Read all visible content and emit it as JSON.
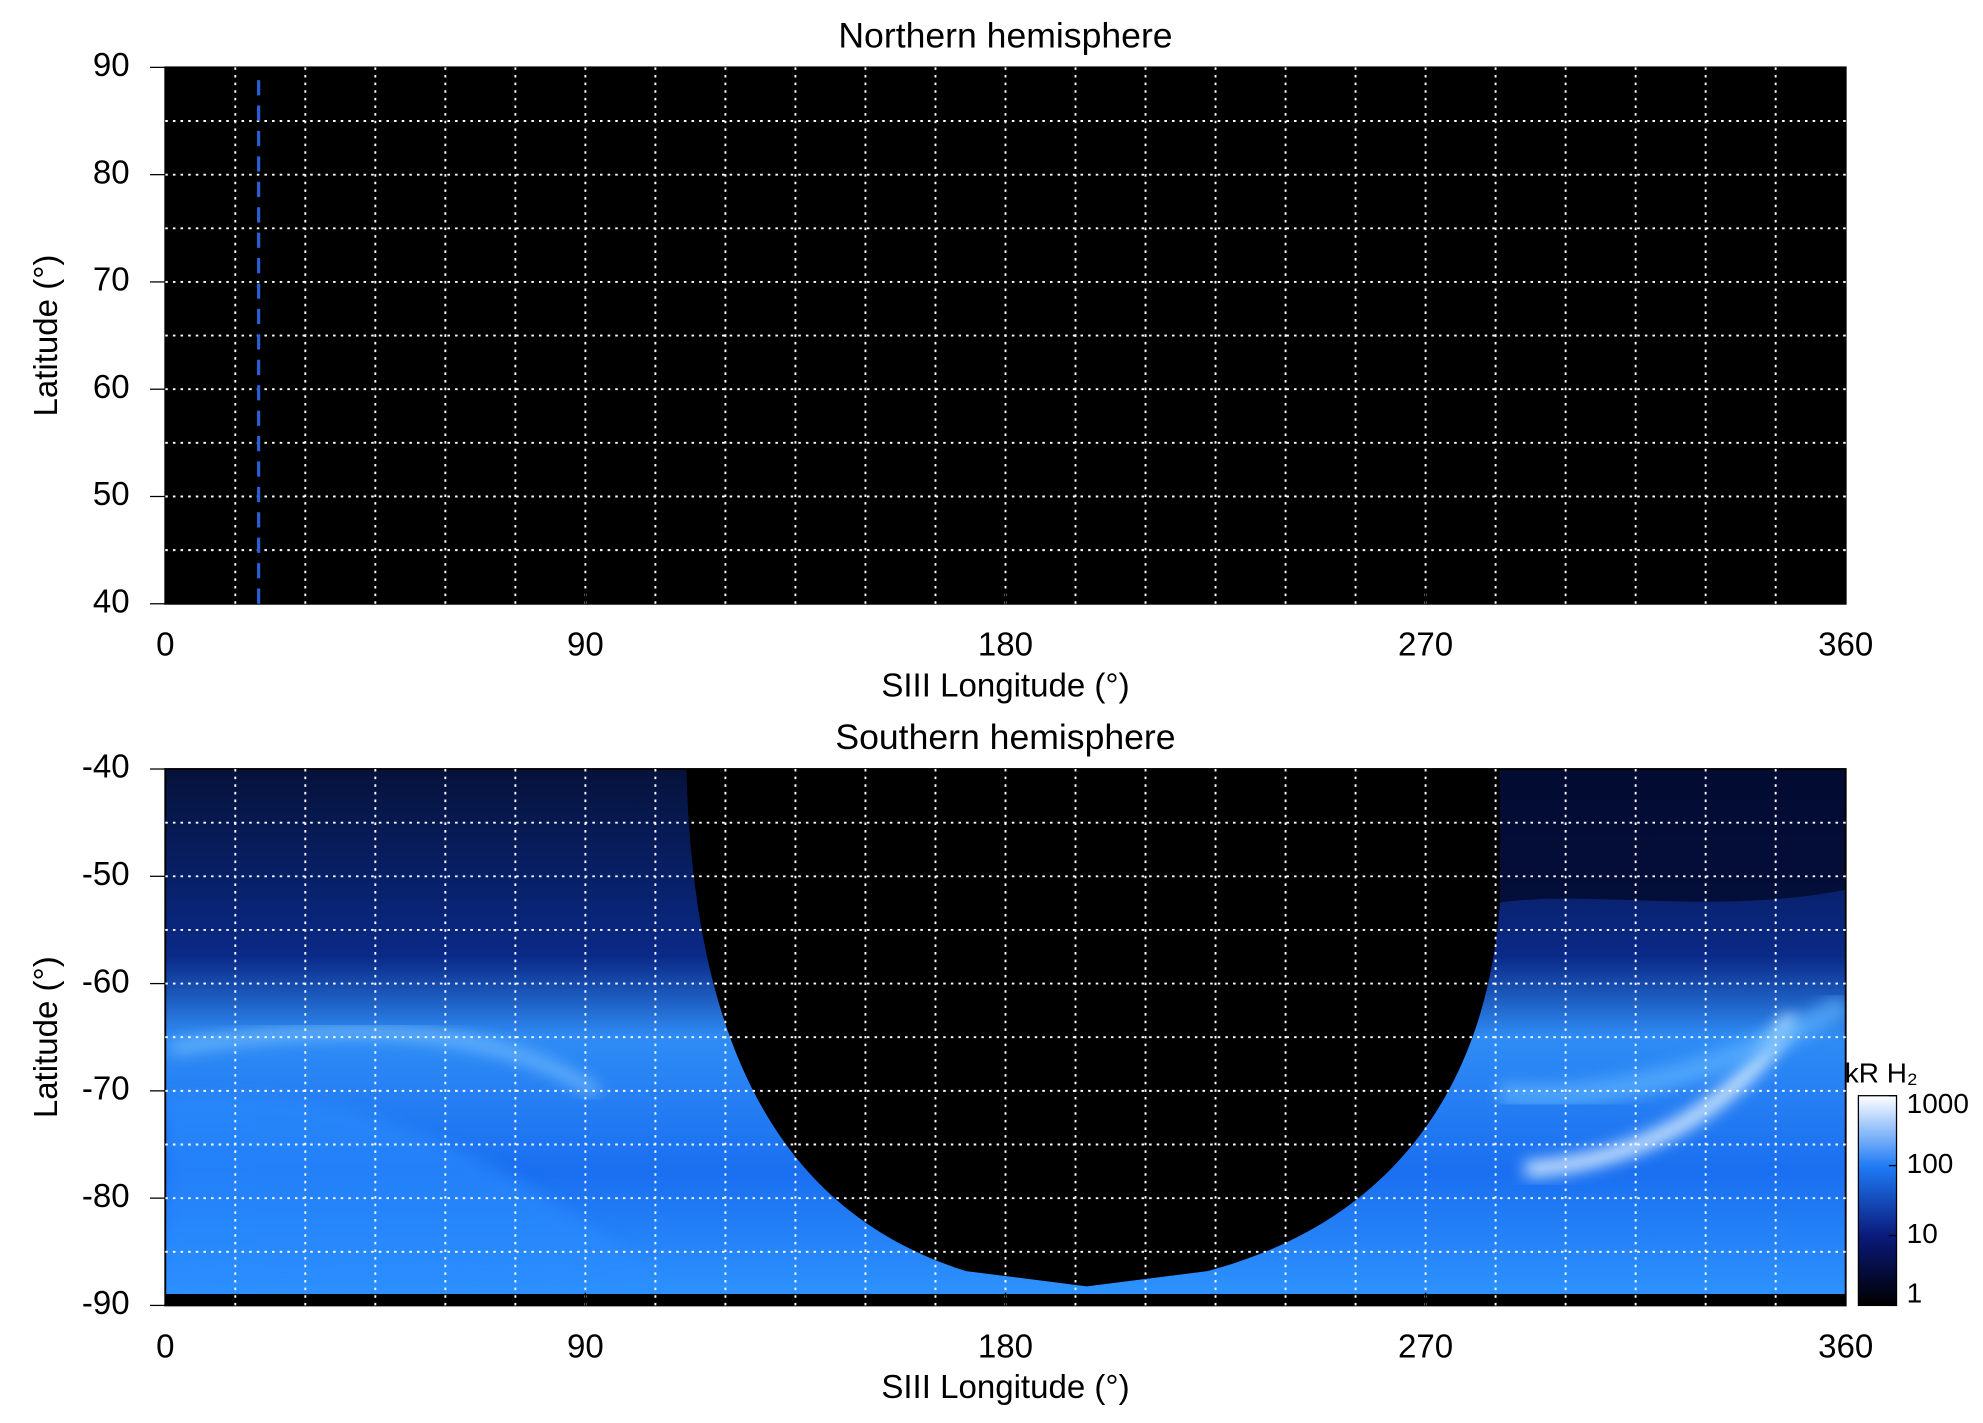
{
  "chart_data": [
    {
      "type": "heatmap",
      "title": "Northern hemisphere",
      "xlabel": "SIII Longitude (°)",
      "ylabel": "Latitude (°)",
      "xlim": [
        0,
        360
      ],
      "xticks": [
        0,
        90,
        180,
        270,
        360
      ],
      "ylim": [
        40,
        90
      ],
      "yticks": [
        40,
        50,
        60,
        70,
        80,
        90
      ],
      "xgrid": [
        15,
        30,
        45,
        60,
        75,
        90,
        105,
        120,
        135,
        150,
        165,
        180,
        195,
        210,
        225,
        240,
        255,
        270,
        285,
        300,
        315,
        330,
        345
      ],
      "ygrid": [
        45,
        50,
        55,
        60,
        65,
        70,
        75,
        80,
        85
      ],
      "vlines": [
        20
      ],
      "vline_color": "#2a5fd6"
    },
    {
      "type": "heatmap",
      "title": "Southern hemisphere",
      "xlabel": "SIII Longitude (°)",
      "ylabel": "Latitude (°)",
      "xlim": [
        0,
        360
      ],
      "xticks": [
        0,
        90,
        180,
        270,
        360
      ],
      "ylim": [
        -90,
        -40
      ],
      "yticks": [
        -90,
        -80,
        -70,
        -60,
        -50,
        -40
      ],
      "xgrid": [
        15,
        30,
        45,
        60,
        75,
        90,
        105,
        120,
        135,
        150,
        165,
        180,
        195,
        210,
        225,
        240,
        255,
        270,
        285,
        300,
        315,
        330,
        345
      ],
      "ygrid": [
        -85,
        -80,
        -75,
        -70,
        -65,
        -60,
        -55,
        -50,
        -45
      ],
      "colorbar": {
        "label": "kR H₂",
        "lim": [
          1,
          1000
        ],
        "ticks": [
          1,
          10,
          100,
          1000
        ],
        "log": true
      }
    }
  ]
}
